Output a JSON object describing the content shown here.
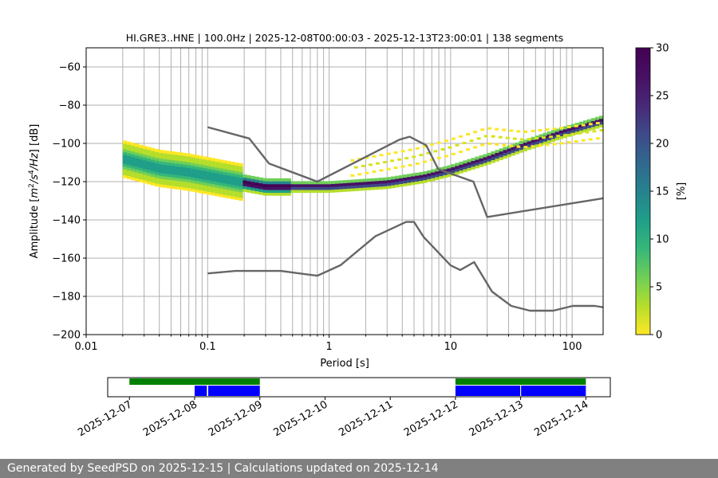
{
  "chart_data": {
    "type": "heatmap",
    "title": "HI.GRE3..HNE | 100.0Hz | 2025-12-08T00:00:03 - 2025-12-13T23:00:01 | 138 segments",
    "xlabel": "Period [s]",
    "ylabel_parts": [
      "Amplitude [",
      "m",
      "2",
      "/",
      "s",
      "4",
      "/",
      "Hz",
      "] [dB]"
    ],
    "xscale": "log",
    "xlim": [
      0.01,
      180
    ],
    "ylim": [
      -200,
      -50
    ],
    "x_ticks": [
      {
        "value": 0.01,
        "label": "0.01"
      },
      {
        "value": 0.1,
        "label": "0.1"
      },
      {
        "value": 1,
        "label": "1"
      },
      {
        "value": 10,
        "label": "10"
      },
      {
        "value": 100,
        "label": "100"
      }
    ],
    "y_ticks": [
      {
        "value": -200,
        "label": "−200"
      },
      {
        "value": -180,
        "label": "−180"
      },
      {
        "value": -160,
        "label": "−160"
      },
      {
        "value": -140,
        "label": "−140"
      },
      {
        "value": -120,
        "label": "−120"
      },
      {
        "value": -100,
        "label": "−100"
      },
      {
        "value": -80,
        "label": "−80"
      },
      {
        "value": -60,
        "label": "−60"
      }
    ],
    "colorbar": {
      "label": "[%]",
      "min": 0,
      "max": 30,
      "ticks": [
        {
          "value": 0,
          "label": "0"
        },
        {
          "value": 5,
          "label": "5"
        },
        {
          "value": 10,
          "label": "10"
        },
        {
          "value": 15,
          "label": "15"
        },
        {
          "value": 20,
          "label": "20"
        },
        {
          "value": 25,
          "label": "25"
        },
        {
          "value": 30,
          "label": "30"
        }
      ],
      "colormap": "viridis_r"
    },
    "series": [
      {
        "name": "NHNM",
        "color": "#666666",
        "points": [
          [
            0.1,
            -91.5
          ],
          [
            0.22,
            -97.4
          ],
          [
            0.32,
            -110.5
          ],
          [
            0.8,
            -120
          ],
          [
            3.8,
            -98
          ],
          [
            4.6,
            -96.5
          ],
          [
            6.3,
            -101
          ],
          [
            7.9,
            -113.5
          ],
          [
            15.4,
            -120
          ],
          [
            20,
            -138.5
          ],
          [
            180,
            -128.7
          ]
        ]
      },
      {
        "name": "NLNM",
        "color": "#666666",
        "points": [
          [
            0.1,
            -168
          ],
          [
            0.17,
            -166.7
          ],
          [
            0.4,
            -166.7
          ],
          [
            0.8,
            -169.2
          ],
          [
            1.24,
            -163.7
          ],
          [
            2.4,
            -148.6
          ],
          [
            4.3,
            -141.1
          ],
          [
            5.0,
            -141.1
          ],
          [
            6.0,
            -149
          ],
          [
            10,
            -163.8
          ],
          [
            12,
            -166.2
          ],
          [
            15.6,
            -162.1
          ],
          [
            21.9,
            -177.5
          ],
          [
            31.6,
            -185
          ],
          [
            45,
            -187.5
          ],
          [
            70,
            -187.5
          ],
          [
            101,
            -185
          ],
          [
            154,
            -185
          ],
          [
            180,
            -185.7
          ]
        ]
      }
    ],
    "density_bands": [
      {
        "name": "main-band",
        "x_from": 0.02,
        "x_to": 180,
        "centers": [
          [
            0.02,
            -108
          ],
          [
            0.04,
            -113
          ],
          [
            0.07,
            -115
          ],
          [
            0.15,
            -119
          ],
          [
            0.3,
            -122.5
          ],
          [
            1,
            -122.5
          ],
          [
            3,
            -120.5
          ],
          [
            6,
            -117.5
          ],
          [
            10,
            -114
          ],
          [
            20,
            -108
          ],
          [
            40,
            -101
          ],
          [
            80,
            -94.5
          ],
          [
            180,
            -88
          ]
        ],
        "core_color": "#440154"
      },
      {
        "name": "upper-band",
        "x_from": 1.5,
        "x_to": 180,
        "centers": [
          [
            1.5,
            -113
          ],
          [
            5,
            -107
          ],
          [
            10,
            -102
          ],
          [
            20,
            -96
          ],
          [
            40,
            -98
          ],
          [
            80,
            -96
          ],
          [
            180,
            -93
          ]
        ],
        "core_color": "#fde725"
      }
    ]
  },
  "timeline": {
    "tick_labels": [
      "2025-12-07",
      "2025-12-08",
      "2025-12-09",
      "2025-12-10",
      "2025-12-11",
      "2025-12-12",
      "2025-12-13",
      "2025-12-14"
    ],
    "start": "2025-12-06T16:00",
    "end": "2025-12-14T09:00",
    "availability_color": "#008000",
    "segments_color": "#0000ff",
    "availability": [
      [
        "2025-12-07T00:00",
        "2025-12-09T00:00"
      ],
      [
        "2025-12-12T00:00",
        "2025-12-14T00:00"
      ]
    ],
    "segments": [
      [
        "2025-12-08T00:00",
        "2025-12-08T04:30"
      ],
      [
        "2025-12-08T05:00",
        "2025-12-09T00:00"
      ],
      [
        "2025-12-12T00:00",
        "2025-12-12T23:50"
      ],
      [
        "2025-12-13T00:10",
        "2025-12-14T00:00"
      ]
    ]
  },
  "footer": {
    "text": "Generated by SeedPSD on 2025-12-15 | Calculations updated on 2025-12-14"
  }
}
